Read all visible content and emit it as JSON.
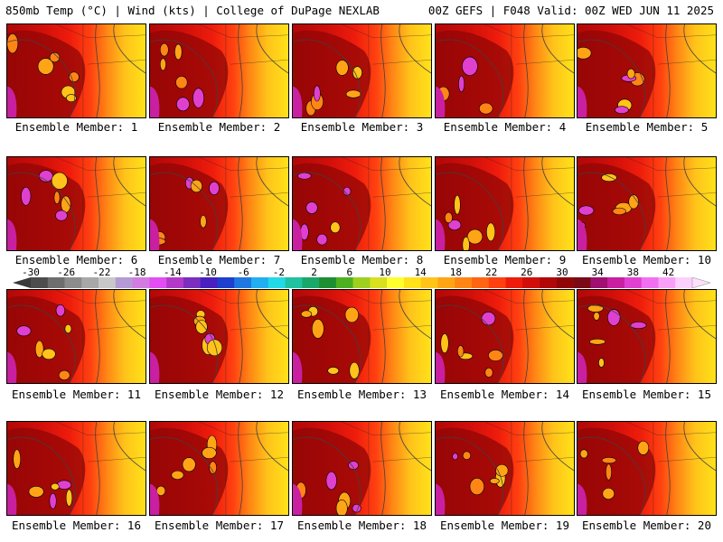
{
  "header": {
    "left_title": "850mb Temp (°C) | Wind (kts) | College of DuPage NEXLAB",
    "right_title": "00Z GEFS | F048 Valid: 00Z WED JUN 11 2025"
  },
  "panels": [
    {
      "caption": "Ensemble Member: 1"
    },
    {
      "caption": "Ensemble Member: 2"
    },
    {
      "caption": "Ensemble Member: 3"
    },
    {
      "caption": "Ensemble Member: 4"
    },
    {
      "caption": "Ensemble Member: 5"
    },
    {
      "caption": "Ensemble Member: 6"
    },
    {
      "caption": "Ensemble Member: 7"
    },
    {
      "caption": "Ensemble Member: 8"
    },
    {
      "caption": "Ensemble Member: 9"
    },
    {
      "caption": "Ensemble Member: 10"
    },
    {
      "caption": "Ensemble Member: 11"
    },
    {
      "caption": "Ensemble Member: 12"
    },
    {
      "caption": "Ensemble Member: 13"
    },
    {
      "caption": "Ensemble Member: 14"
    },
    {
      "caption": "Ensemble Member: 15"
    },
    {
      "caption": "Ensemble Member: 16"
    },
    {
      "caption": "Ensemble Member: 17"
    },
    {
      "caption": "Ensemble Member: 18"
    },
    {
      "caption": "Ensemble Member: 19"
    },
    {
      "caption": "Ensemble Member: 20"
    }
  ],
  "colorbar": {
    "labels": [
      "-30",
      "-26",
      "-22",
      "-18",
      "-14",
      "-10",
      "-6",
      "-2",
      "2",
      "6",
      "10",
      "14",
      "18",
      "22",
      "26",
      "30",
      "34",
      "38",
      "42"
    ],
    "colors": [
      "#4d4d4d",
      "#6e6e6e",
      "#8c8c8c",
      "#a8a8a8",
      "#c8c8c8",
      "#b59ad6",
      "#d27be0",
      "#e24ef2",
      "#b33ac9",
      "#7b2fbe",
      "#4a1fbf",
      "#1f3fcf",
      "#1f78e0",
      "#22aef0",
      "#22d9e6",
      "#20c2a0",
      "#1aa86a",
      "#1e8f30",
      "#4db020",
      "#9fd020",
      "#d8e020",
      "#ffff30",
      "#ffe21a",
      "#ffc31a",
      "#ffa515",
      "#ff8615",
      "#ff6512",
      "#ff4010",
      "#ee1c0c",
      "#d00f0a",
      "#b00808",
      "#900606",
      "#7a0a16",
      "#a01070",
      "#c820a0",
      "#e040d0",
      "#f070f0",
      "#f8a0f8",
      "#fcd0fc"
    ]
  }
}
